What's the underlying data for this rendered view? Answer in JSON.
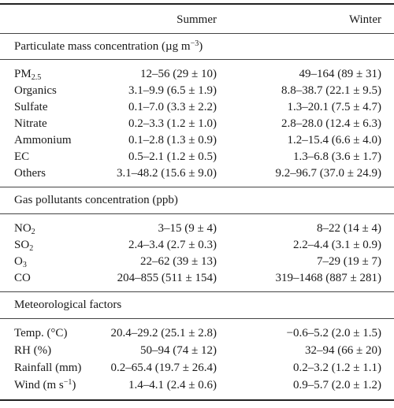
{
  "table": {
    "headers": {
      "col1": "",
      "summer": "Summer",
      "winter": "Winter"
    },
    "sections": [
      {
        "title": {
          "pre": "Particulate mass concentration (µg m",
          "sup": "−3",
          "post": ")"
        },
        "rows": [
          {
            "label": "PM",
            "sub": "2.5",
            "summer": "12–56 (29 ± 10)",
            "winter": "49–164 (89 ± 31)"
          },
          {
            "label": "Organics",
            "summer": "3.1–9.9 (6.5 ± 1.9)",
            "winter": "8.8–38.7 (22.1 ± 9.5)"
          },
          {
            "label": "Sulfate",
            "summer": "0.1–7.0 (3.3 ± 2.2)",
            "winter": "1.3–20.1 (7.5 ± 4.7)"
          },
          {
            "label": "Nitrate",
            "summer": "0.2–3.3 (1.2 ± 1.0)",
            "winter": "2.8–28.0 (12.4 ± 6.3)"
          },
          {
            "label": "Ammonium",
            "summer": "0.1–2.8 (1.3 ± 0.9)",
            "winter": "1.2–15.4 (6.6 ± 4.0)"
          },
          {
            "label": "EC",
            "summer": "0.5–2.1 (1.2 ± 0.5)",
            "winter": "1.3–6.8 (3.6 ± 1.7)"
          },
          {
            "label": "Others",
            "summer": "3.1–48.2 (15.6 ± 9.0)",
            "winter": "9.2–96.7 (37.0 ± 24.9)"
          }
        ]
      },
      {
        "title": {
          "pre": "Gas pollutants concentration (ppb)"
        },
        "rows": [
          {
            "label": "NO",
            "sub": "2",
            "summer": "3–15 (9 ± 4)",
            "winter": "8–22 (14 ± 4)"
          },
          {
            "label": "SO",
            "sub": "2",
            "summer": "2.4–3.4 (2.7 ± 0.3)",
            "winter": "2.2–4.4 (3.1 ± 0.9)"
          },
          {
            "label": "O",
            "sub": "3",
            "summer": "22–62 (39 ± 13)",
            "winter": "7–29 (19 ± 7)"
          },
          {
            "label": "CO",
            "summer": "204–855 (511 ± 154)",
            "winter": "319–1468 (887 ± 281)"
          }
        ]
      },
      {
        "title": {
          "pre": "Meteorological factors"
        },
        "rows": [
          {
            "label": "Temp. (°C)",
            "summer": "20.4–29.2 (25.1 ± 2.8)",
            "winter": "−0.6–5.2 (2.0 ± 1.5)"
          },
          {
            "label": "RH (%)",
            "summer": "50–94 (74 ± 12)",
            "winter": "32–94 (66 ± 20)"
          },
          {
            "label": "Rainfall (mm)",
            "summer": "0.2–65.4 (19.7 ± 26.4)",
            "winter": "0.2–3.2 (1.2 ± 1.1)"
          },
          {
            "label": "Wind (m s",
            "sup": "−1",
            "post": ")",
            "summer": "1.4–4.1 (2.4 ± 0.6)",
            "winter": "0.9–5.7 (2.0 ± 1.2)"
          }
        ]
      }
    ]
  }
}
